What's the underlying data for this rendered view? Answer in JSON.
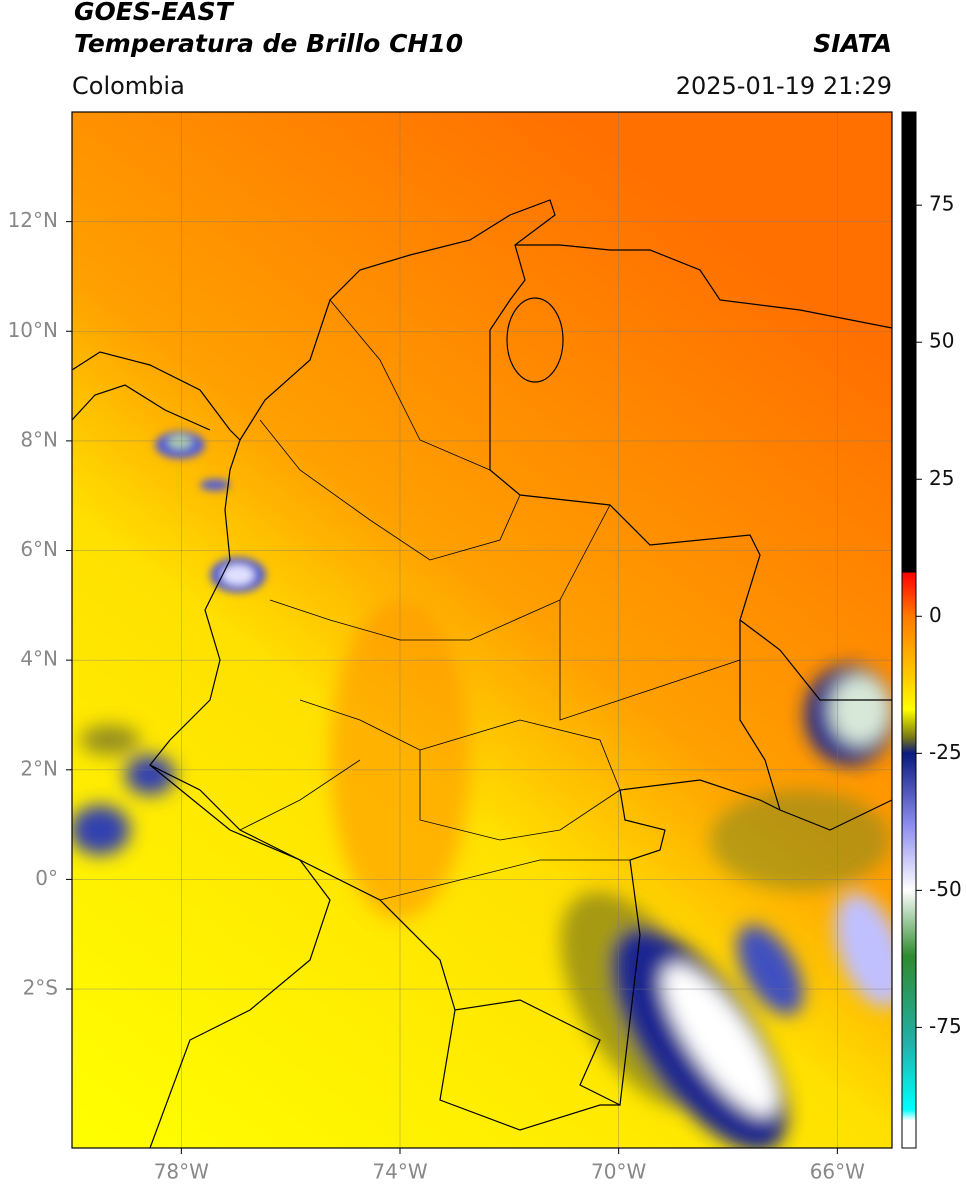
{
  "header": {
    "title": "GOES-EAST",
    "subtitle": "Temperatura de Brillo CH10",
    "region": "Colombia",
    "source": "SIATA",
    "timestamp": "2025-01-19 21:29"
  },
  "map": {
    "lonlim": [
      -80,
      -65
    ],
    "latlim": [
      -4.9,
      14
    ],
    "grid": true,
    "lonticks": [
      {
        "value": -78,
        "label": "78°W"
      },
      {
        "value": -74,
        "label": "74°W"
      },
      {
        "value": -70,
        "label": "70°W"
      },
      {
        "value": -66,
        "label": "66°W"
      }
    ],
    "latticks": [
      {
        "value": -2,
        "label": "2°S"
      },
      {
        "value": 0,
        "label": "0°"
      },
      {
        "value": 2,
        "label": "2°N"
      },
      {
        "value": 4,
        "label": "4°N"
      },
      {
        "value": 6,
        "label": "6°N"
      },
      {
        "value": 8,
        "label": "8°N"
      },
      {
        "value": 10,
        "label": "10°N"
      },
      {
        "value": 12,
        "label": "12°N"
      }
    ]
  },
  "colorbar": {
    "lim": [
      -97,
      92
    ],
    "ticks": [
      75,
      50,
      25,
      0,
      -25,
      -50,
      -75
    ],
    "stops": [
      {
        "value": 92,
        "color": "#000000"
      },
      {
        "value": 8,
        "color": "#000000"
      },
      {
        "value": 8,
        "color": "#ff0000"
      },
      {
        "value": 0,
        "color": "#ff7a00"
      },
      {
        "value": -12,
        "color": "#ffd200"
      },
      {
        "value": -17,
        "color": "#ffff00"
      },
      {
        "value": -22,
        "color": "#7a7a10"
      },
      {
        "value": -25,
        "color": "#0a1a80"
      },
      {
        "value": -38,
        "color": "#8c8cf0"
      },
      {
        "value": -50,
        "color": "#ffffff"
      },
      {
        "value": -62,
        "color": "#2e8b2e"
      },
      {
        "value": -78,
        "color": "#20b2aa"
      },
      {
        "value": -90,
        "color": "#00ffff"
      },
      {
        "value": -92,
        "color": "#ffffff"
      }
    ]
  }
}
